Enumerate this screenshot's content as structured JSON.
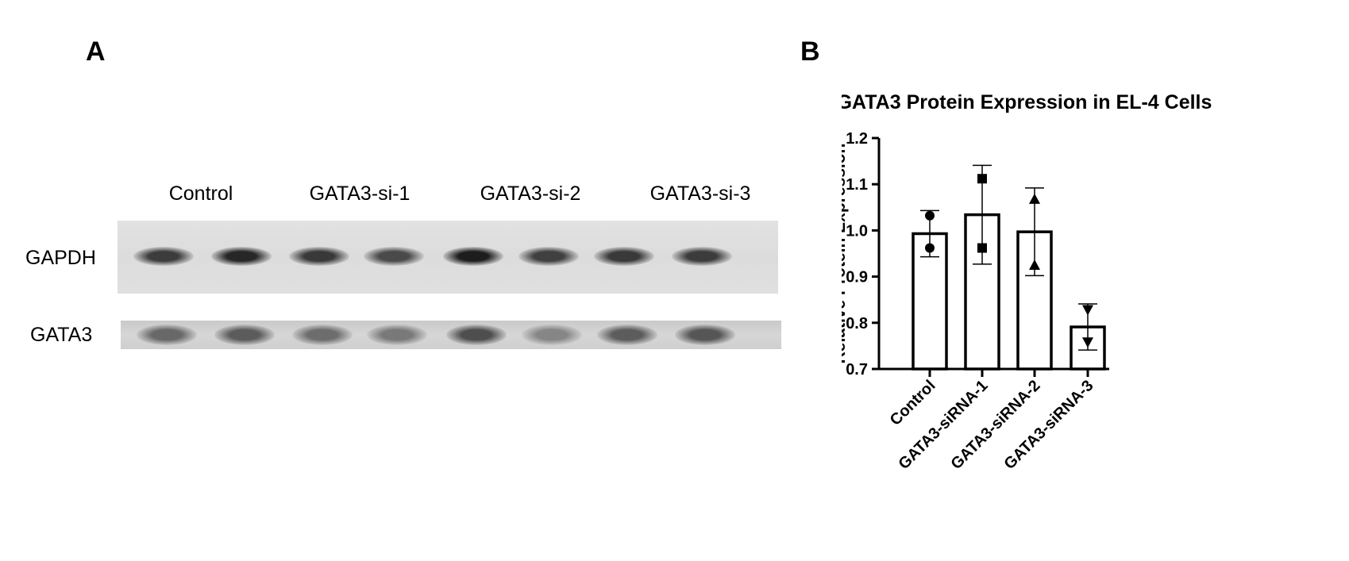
{
  "panel_a": {
    "letter": "A",
    "lane_labels": [
      "Control",
      "GATA3-si-1",
      "GATA3-si-2",
      "GATA3-si-3"
    ],
    "row_labels": [
      "GAPDH",
      "GATA3"
    ],
    "bands": {
      "gapdh_intensity": [
        0.8,
        0.92,
        0.82,
        0.72,
        0.98,
        0.78,
        0.82,
        0.8
      ],
      "gata3_intensity": [
        0.55,
        0.62,
        0.52,
        0.45,
        0.7,
        0.38,
        0.62,
        0.65
      ]
    }
  },
  "panel_b": {
    "letter": "B"
  },
  "chart_data": {
    "type": "bar",
    "title": "GATA3 Protein Expression in EL-4 Cells",
    "ylabel": "Relative Protein Expression",
    "xlabel": "",
    "categories": [
      "Control",
      "GATA3-siRNA-1",
      "GATA3-siRNA-2",
      "GATA3-siRNA-3"
    ],
    "values": [
      0.993,
      1.034,
      0.997,
      0.791
    ],
    "error": [
      0.05,
      0.107,
      0.095,
      0.05
    ],
    "points": [
      [
        1.032,
        0.962
      ],
      [
        1.112,
        0.962
      ],
      [
        1.068,
        0.925
      ],
      [
        0.828,
        0.758
      ]
    ],
    "markers": [
      "circle",
      "square",
      "triangle-up",
      "triangle-down"
    ],
    "ylim": [
      0.7,
      1.2
    ],
    "yticks": [
      "0.7",
      "0.8",
      "0.9",
      "1.0",
      "1.1",
      "1.2"
    ],
    "colors": {
      "bar_fill": "#ffffff",
      "stroke": "#000000"
    },
    "grid": false
  }
}
